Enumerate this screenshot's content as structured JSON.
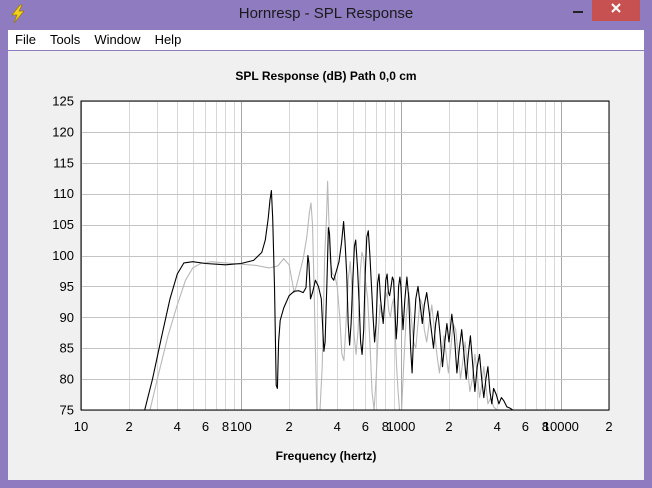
{
  "window": {
    "title": "Hornresp - SPL Response",
    "icon": "lightning-icon",
    "buttons": {
      "minimize": "minimize-icon",
      "maximize": "maximize-icon",
      "close": "close-icon"
    }
  },
  "menu": {
    "items": [
      {
        "label": "File"
      },
      {
        "label": "Tools"
      },
      {
        "label": "Window"
      },
      {
        "label": "Help"
      }
    ]
  },
  "chart_data": {
    "type": "line",
    "title": "SPL Response (dB)   Path 0,0 cm",
    "xlabel": "Frequency (hertz)",
    "ylabel": "",
    "x_scale": "log",
    "xlim": [
      10,
      20000
    ],
    "ylim": [
      75,
      125
    ],
    "x_tick_labels": [
      {
        "x": 10,
        "label": "10"
      },
      {
        "x": 20,
        "label": "2"
      },
      {
        "x": 40,
        "label": "4"
      },
      {
        "x": 60,
        "label": "6"
      },
      {
        "x": 80,
        "label": "8"
      },
      {
        "x": 100,
        "label": "100"
      },
      {
        "x": 200,
        "label": "2"
      },
      {
        "x": 400,
        "label": "4"
      },
      {
        "x": 600,
        "label": "6"
      },
      {
        "x": 800,
        "label": "8"
      },
      {
        "x": 1000,
        "label": "1000"
      },
      {
        "x": 2000,
        "label": "2"
      },
      {
        "x": 4000,
        "label": "4"
      },
      {
        "x": 6000,
        "label": "6"
      },
      {
        "x": 8000,
        "label": "8"
      },
      {
        "x": 10000,
        "label": "10000"
      },
      {
        "x": 20000,
        "label": "2"
      }
    ],
    "y_ticks": [
      75,
      80,
      85,
      90,
      95,
      100,
      105,
      110,
      115,
      120,
      125
    ],
    "grid": true,
    "series": [
      {
        "color": "#000000",
        "points": [
          [
            25,
            75
          ],
          [
            28,
            80
          ],
          [
            32,
            87
          ],
          [
            36,
            93
          ],
          [
            40,
            97
          ],
          [
            44,
            98.8
          ],
          [
            50,
            99
          ],
          [
            60,
            98.7
          ],
          [
            70,
            98.6
          ],
          [
            80,
            98.5
          ],
          [
            100,
            98.7
          ],
          [
            120,
            99.2
          ],
          [
            135,
            100.5
          ],
          [
            142,
            102.5
          ],
          [
            148,
            106
          ],
          [
            152,
            109
          ],
          [
            155,
            110.5
          ],
          [
            158,
            106
          ],
          [
            162,
            95
          ],
          [
            166,
            79
          ],
          [
            169,
            78.5
          ],
          [
            172,
            86
          ],
          [
            176,
            89.5
          ],
          [
            185,
            91.5
          ],
          [
            200,
            93.5
          ],
          [
            215,
            94.2
          ],
          [
            230,
            94.3
          ],
          [
            245,
            94
          ],
          [
            255,
            94.8
          ],
          [
            262,
            100
          ],
          [
            266,
            98.8
          ],
          [
            272,
            93
          ],
          [
            280,
            94
          ],
          [
            292,
            96
          ],
          [
            305,
            95
          ],
          [
            318,
            93
          ],
          [
            325,
            88
          ],
          [
            330,
            84.5
          ],
          [
            336,
            86
          ],
          [
            345,
            96
          ],
          [
            352,
            104.5
          ],
          [
            358,
            103.5
          ],
          [
            368,
            96.5
          ],
          [
            380,
            96
          ],
          [
            395,
            97.5
          ],
          [
            410,
            99
          ],
          [
            425,
            102
          ],
          [
            438,
            105.5
          ],
          [
            448,
            102
          ],
          [
            458,
            97
          ],
          [
            468,
            89
          ],
          [
            478,
            85.5
          ],
          [
            488,
            89
          ],
          [
            500,
            96
          ],
          [
            512,
            101.5
          ],
          [
            522,
            102.5
          ],
          [
            535,
            98
          ],
          [
            548,
            92.5
          ],
          [
            560,
            86
          ],
          [
            572,
            84
          ],
          [
            585,
            88
          ],
          [
            598,
            97
          ],
          [
            612,
            103
          ],
          [
            625,
            104
          ],
          [
            640,
            100
          ],
          [
            655,
            95
          ],
          [
            670,
            90
          ],
          [
            685,
            86
          ],
          [
            700,
            89
          ],
          [
            715,
            95.5
          ],
          [
            730,
            97
          ],
          [
            745,
            93
          ],
          [
            760,
            91
          ],
          [
            775,
            89
          ],
          [
            790,
            92
          ],
          [
            805,
            96
          ],
          [
            820,
            97
          ],
          [
            835,
            94
          ],
          [
            850,
            93.5
          ],
          [
            868,
            95
          ],
          [
            885,
            96.5
          ],
          [
            900,
            96
          ],
          [
            918,
            91
          ],
          [
            935,
            86.5
          ],
          [
            950,
            89
          ],
          [
            968,
            95
          ],
          [
            985,
            96.5
          ],
          [
            1000,
            95
          ],
          [
            1030,
            88
          ],
          [
            1060,
            93
          ],
          [
            1090,
            96.5
          ],
          [
            1120,
            93
          ],
          [
            1150,
            85
          ],
          [
            1175,
            81
          ],
          [
            1200,
            87
          ],
          [
            1240,
            93
          ],
          [
            1280,
            95
          ],
          [
            1320,
            92
          ],
          [
            1360,
            89
          ],
          [
            1400,
            92
          ],
          [
            1450,
            94
          ],
          [
            1500,
            91
          ],
          [
            1550,
            88
          ],
          [
            1600,
            85
          ],
          [
            1650,
            89
          ],
          [
            1700,
            91
          ],
          [
            1760,
            87
          ],
          [
            1820,
            82
          ],
          [
            1880,
            86
          ],
          [
            1940,
            89
          ],
          [
            2000,
            86
          ],
          [
            2080,
            90.5
          ],
          [
            2160,
            87
          ],
          [
            2240,
            81
          ],
          [
            2320,
            85
          ],
          [
            2400,
            88
          ],
          [
            2480,
            84
          ],
          [
            2560,
            80
          ],
          [
            2640,
            84
          ],
          [
            2720,
            87
          ],
          [
            2800,
            83
          ],
          [
            2900,
            78
          ],
          [
            3000,
            82
          ],
          [
            3100,
            84
          ],
          [
            3200,
            80
          ],
          [
            3300,
            77
          ],
          [
            3400,
            80
          ],
          [
            3500,
            82
          ],
          [
            3600,
            78
          ],
          [
            3700,
            76
          ],
          [
            3800,
            78.5
          ],
          [
            3950,
            77.5
          ],
          [
            4100,
            76
          ],
          [
            4250,
            77
          ],
          [
            4400,
            76.5
          ],
          [
            4600,
            75.5
          ],
          [
            4800,
            75.3
          ],
          [
            5000,
            75
          ]
        ]
      },
      {
        "color": "#b8b8b8",
        "points": [
          [
            27,
            75
          ],
          [
            30,
            80
          ],
          [
            35,
            87
          ],
          [
            40,
            92
          ],
          [
            45,
            96
          ],
          [
            50,
            98
          ],
          [
            56,
            98.7
          ],
          [
            65,
            99
          ],
          [
            80,
            98.8
          ],
          [
            100,
            98.6
          ],
          [
            125,
            98.4
          ],
          [
            150,
            98
          ],
          [
            170,
            98.3
          ],
          [
            185,
            99.5
          ],
          [
            200,
            98.5
          ],
          [
            210,
            95.5
          ],
          [
            215,
            94
          ],
          [
            222,
            95
          ],
          [
            232,
            97
          ],
          [
            245,
            99.5
          ],
          [
            258,
            103
          ],
          [
            268,
            107
          ],
          [
            274,
            108.5
          ],
          [
            280,
            105
          ],
          [
            286,
            96
          ],
          [
            292,
            85
          ],
          [
            298,
            75
          ],
          [
            312,
            75
          ],
          [
            322,
            82
          ],
          [
            334,
            100
          ],
          [
            343,
            106.5
          ],
          [
            348,
            112
          ],
          [
            354,
            106
          ],
          [
            362,
            99
          ],
          [
            374,
            97
          ],
          [
            388,
            96.5
          ],
          [
            400,
            95
          ],
          [
            415,
            90
          ],
          [
            428,
            84
          ],
          [
            440,
            83
          ],
          [
            452,
            88
          ],
          [
            468,
            96
          ],
          [
            482,
            99
          ],
          [
            495,
            94.5
          ],
          [
            510,
            87
          ],
          [
            525,
            84
          ],
          [
            540,
            88
          ],
          [
            556,
            97
          ],
          [
            570,
            100.5
          ],
          [
            585,
            99.5
          ],
          [
            600,
            96
          ],
          [
            620,
            93
          ],
          [
            640,
            86
          ],
          [
            660,
            78
          ],
          [
            680,
            75
          ],
          [
            700,
            80
          ],
          [
            720,
            87
          ],
          [
            740,
            92
          ],
          [
            760,
            90
          ],
          [
            780,
            91
          ],
          [
            800,
            93
          ],
          [
            820,
            94
          ],
          [
            840,
            91
          ],
          [
            860,
            90
          ],
          [
            880,
            92
          ],
          [
            900,
            93
          ],
          [
            920,
            88
          ],
          [
            940,
            82
          ],
          [
            960,
            78
          ],
          [
            980,
            75
          ],
          [
            1010,
            75
          ],
          [
            1040,
            82
          ],
          [
            1080,
            90
          ],
          [
            1120,
            94
          ],
          [
            1160,
            90
          ],
          [
            1200,
            86
          ],
          [
            1240,
            85
          ],
          [
            1280,
            89
          ],
          [
            1320,
            93
          ],
          [
            1360,
            92
          ],
          [
            1400,
            88
          ],
          [
            1450,
            86
          ],
          [
            1500,
            89
          ],
          [
            1560,
            92
          ],
          [
            1620,
            88
          ],
          [
            1680,
            84
          ],
          [
            1740,
            81
          ],
          [
            1800,
            84
          ],
          [
            1860,
            87
          ],
          [
            1920,
            84
          ],
          [
            1980,
            81
          ],
          [
            2050,
            85
          ],
          [
            2120,
            89
          ],
          [
            2200,
            88
          ],
          [
            2280,
            84
          ],
          [
            2360,
            80
          ],
          [
            2440,
            83
          ],
          [
            2520,
            86
          ],
          [
            2600,
            82
          ],
          [
            2700,
            78
          ],
          [
            2800,
            80
          ],
          [
            2900,
            84
          ],
          [
            3000,
            81
          ],
          [
            3100,
            77
          ],
          [
            3200,
            79
          ],
          [
            3300,
            82
          ],
          [
            3400,
            79
          ],
          [
            3500,
            76
          ],
          [
            3650,
            77
          ],
          [
            3800,
            75.5
          ],
          [
            4000,
            75
          ]
        ]
      }
    ]
  }
}
